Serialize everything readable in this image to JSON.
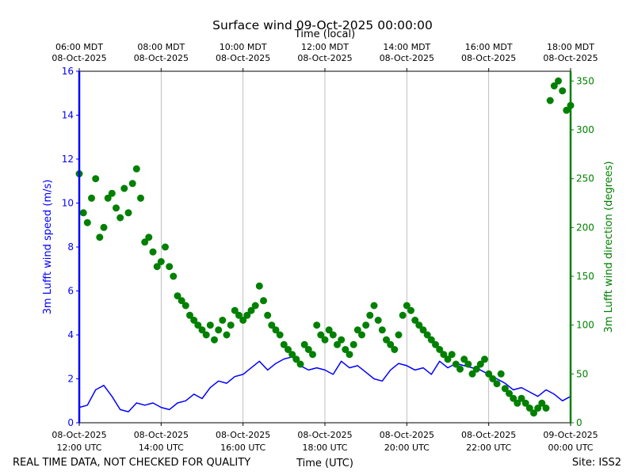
{
  "chart_data": {
    "type": "line",
    "title": "Surface wind 09-Oct-2025 00:00:00",
    "xlabel": "Time (UTC)",
    "x2label": "Time (local)",
    "ylabel": "3m Lufft wind speed (m/s)",
    "y2label": "3m Lufft wind direction (degrees)",
    "footer_left": "REAL TIME DATA, NOT CHECKED FOR QUALITY",
    "footer_right": "Site: ISS2",
    "x_range_hours_utc": [
      12,
      24
    ],
    "ylim": [
      0,
      16
    ],
    "y2lim": [
      0,
      360
    ],
    "grid": "vertical only",
    "x_ticks_utc": [
      {
        "hour": 12,
        "date": "08-Oct-2025",
        "time": "12:00 UTC"
      },
      {
        "hour": 14,
        "date": "08-Oct-2025",
        "time": "14:00 UTC"
      },
      {
        "hour": 16,
        "date": "08-Oct-2025",
        "time": "16:00 UTC"
      },
      {
        "hour": 18,
        "date": "08-Oct-2025",
        "time": "18:00 UTC"
      },
      {
        "hour": 20,
        "date": "08-Oct-2025",
        "time": "20:00 UTC"
      },
      {
        "hour": 22,
        "date": "08-Oct-2025",
        "time": "22:00 UTC"
      },
      {
        "hour": 24,
        "date": "09-Oct-2025",
        "time": "00:00 UTC"
      }
    ],
    "x_ticks_local": [
      {
        "hour": 12,
        "time": "06:00 MDT",
        "date": "08-Oct-2025"
      },
      {
        "hour": 14,
        "time": "08:00 MDT",
        "date": "08-Oct-2025"
      },
      {
        "hour": 16,
        "time": "10:00 MDT",
        "date": "08-Oct-2025"
      },
      {
        "hour": 18,
        "time": "12:00 MDT",
        "date": "08-Oct-2025"
      },
      {
        "hour": 20,
        "time": "14:00 MDT",
        "date": "08-Oct-2025"
      },
      {
        "hour": 22,
        "time": "16:00 MDT",
        "date": "08-Oct-2025"
      },
      {
        "hour": 24,
        "time": "18:00 MDT",
        "date": "08-Oct-2025"
      }
    ],
    "y_ticks": [
      "0",
      "2",
      "4",
      "6",
      "8",
      "10",
      "12",
      "14",
      "16"
    ],
    "y2_ticks": [
      "0",
      "50",
      "100",
      "150",
      "200",
      "250",
      "300",
      "350"
    ],
    "colors": {
      "speed": "#0000ff",
      "direction": "#008000"
    },
    "speed_series": {
      "axis": "left",
      "hours": [
        12.0,
        12.2,
        12.4,
        12.6,
        12.8,
        13.0,
        13.2,
        13.4,
        13.6,
        13.8,
        14.0,
        14.2,
        14.4,
        14.6,
        14.8,
        15.0,
        15.2,
        15.4,
        15.6,
        15.8,
        16.0,
        16.2,
        16.4,
        16.6,
        16.8,
        17.0,
        17.2,
        17.4,
        17.6,
        17.8,
        18.0,
        18.2,
        18.4,
        18.6,
        18.8,
        19.0,
        19.2,
        19.4,
        19.6,
        19.8,
        20.0,
        20.2,
        20.4,
        20.6,
        20.8,
        21.0,
        21.2,
        21.4,
        21.6,
        21.8,
        22.0,
        22.2,
        22.4,
        22.6,
        22.8,
        23.0,
        23.2,
        23.4,
        23.6,
        23.8,
        24.0
      ],
      "values": [
        0.7,
        0.8,
        1.5,
        1.7,
        1.2,
        0.6,
        0.5,
        0.9,
        0.8,
        0.9,
        0.7,
        0.6,
        0.9,
        1.0,
        1.3,
        1.1,
        1.6,
        1.9,
        1.8,
        2.1,
        2.2,
        2.5,
        2.8,
        2.4,
        2.7,
        2.9,
        3.0,
        2.6,
        2.4,
        2.5,
        2.4,
        2.2,
        2.8,
        2.5,
        2.6,
        2.3,
        2.0,
        1.9,
        2.4,
        2.7,
        2.6,
        2.4,
        2.5,
        2.2,
        2.8,
        2.5,
        2.7,
        2.6,
        2.5,
        2.4,
        2.2,
        2.0,
        1.8,
        1.5,
        1.6,
        1.4,
        1.2,
        1.5,
        1.3,
        1.0,
        1.2
      ]
    },
    "direction_series": {
      "axis": "right",
      "hours": [
        12.0,
        12.1,
        12.2,
        12.3,
        12.4,
        12.5,
        12.6,
        12.7,
        12.8,
        12.9,
        13.0,
        13.1,
        13.2,
        13.3,
        13.4,
        13.5,
        13.6,
        13.7,
        13.8,
        13.9,
        14.0,
        14.1,
        14.2,
        14.3,
        14.4,
        14.5,
        14.6,
        14.7,
        14.8,
        14.9,
        15.0,
        15.1,
        15.2,
        15.3,
        15.4,
        15.5,
        15.6,
        15.7,
        15.8,
        15.9,
        16.0,
        16.1,
        16.2,
        16.3,
        16.4,
        16.5,
        16.6,
        16.7,
        16.8,
        16.9,
        17.0,
        17.1,
        17.2,
        17.3,
        17.4,
        17.5,
        17.6,
        17.7,
        17.8,
        17.9,
        18.0,
        18.1,
        18.2,
        18.3,
        18.4,
        18.5,
        18.6,
        18.7,
        18.8,
        18.9,
        19.0,
        19.1,
        19.2,
        19.3,
        19.4,
        19.5,
        19.6,
        19.7,
        19.8,
        19.9,
        20.0,
        20.1,
        20.2,
        20.3,
        20.4,
        20.5,
        20.6,
        20.7,
        20.8,
        20.9,
        21.0,
        21.1,
        21.2,
        21.3,
        21.4,
        21.5,
        21.6,
        21.7,
        21.8,
        21.9,
        22.0,
        22.1,
        22.2,
        22.3,
        22.4,
        22.5,
        22.6,
        22.7,
        22.8,
        22.9,
        23.0,
        23.1,
        23.2,
        23.3,
        23.4,
        23.5,
        23.6,
        23.7,
        23.8,
        23.9,
        24.0
      ],
      "values": [
        255,
        215,
        205,
        230,
        250,
        190,
        200,
        230,
        235,
        220,
        210,
        240,
        215,
        245,
        260,
        230,
        185,
        190,
        175,
        160,
        165,
        180,
        160,
        150,
        130,
        125,
        120,
        110,
        105,
        100,
        95,
        90,
        100,
        85,
        95,
        105,
        90,
        100,
        115,
        110,
        105,
        110,
        115,
        120,
        140,
        125,
        110,
        100,
        95,
        90,
        80,
        75,
        70,
        65,
        60,
        80,
        75,
        70,
        100,
        90,
        85,
        95,
        90,
        80,
        85,
        75,
        70,
        80,
        95,
        90,
        100,
        110,
        120,
        105,
        95,
        85,
        80,
        75,
        90,
        110,
        120,
        115,
        105,
        100,
        95,
        90,
        85,
        80,
        75,
        70,
        65,
        70,
        60,
        55,
        65,
        60,
        50,
        55,
        60,
        65,
        50,
        45,
        40,
        50,
        35,
        30,
        25,
        20,
        25,
        20,
        15,
        10,
        15,
        20,
        15,
        330,
        345,
        350,
        340,
        320,
        325
      ]
    }
  }
}
